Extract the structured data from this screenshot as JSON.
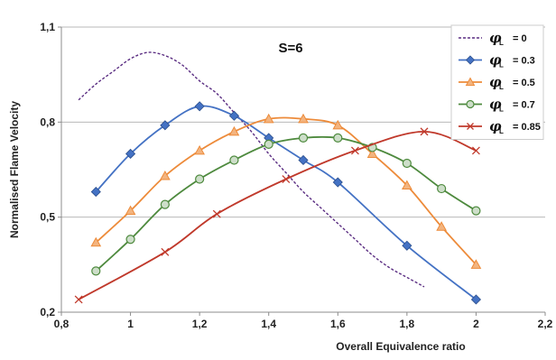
{
  "chart_data": {
    "type": "line",
    "xlabel": "Overall Equivalence ratio",
    "ylabel": "Normalised Flame Velocity",
    "xlim": [
      0.8,
      2.2
    ],
    "ylim": [
      0.2,
      1.1
    ],
    "x_ticks": [
      0.8,
      1.0,
      1.2,
      1.4,
      1.6,
      1.8,
      2.0,
      2.2
    ],
    "x_tick_labels": [
      "0,8",
      "1",
      "1,2",
      "1,4",
      "1,6",
      "1,8",
      "2",
      "2,2"
    ],
    "y_ticks": [
      0.2,
      0.5,
      0.8,
      1.1
    ],
    "y_tick_labels": [
      "0,2",
      "0,5",
      "0,8",
      "1,1"
    ],
    "grid": "horizontal",
    "legend_position": "top-right",
    "annotation": "S=6",
    "series": [
      {
        "name_symbol": "φ",
        "name_subscript": "L",
        "name_value": "= 0",
        "color": "#5a2d82",
        "dashed": true,
        "marker": "none",
        "x": [
          0.85,
          0.9,
          0.95,
          1.0,
          1.05,
          1.1,
          1.15,
          1.2,
          1.25,
          1.3,
          1.35,
          1.4,
          1.45,
          1.5,
          1.55,
          1.6,
          1.65,
          1.7,
          1.75,
          1.8,
          1.85
        ],
        "y": [
          0.87,
          0.92,
          0.96,
          1.0,
          1.02,
          1.01,
          0.98,
          0.93,
          0.89,
          0.83,
          0.77,
          0.7,
          0.64,
          0.58,
          0.53,
          0.48,
          0.43,
          0.38,
          0.34,
          0.31,
          0.28
        ]
      },
      {
        "name_symbol": "φ",
        "name_subscript": "L",
        "name_value": "= 0.3",
        "color": "#4472c4",
        "dashed": false,
        "marker": "diamond",
        "x": [
          0.9,
          1.0,
          1.1,
          1.2,
          1.3,
          1.4,
          1.5,
          1.6,
          1.8,
          2.0
        ],
        "y": [
          0.58,
          0.7,
          0.79,
          0.85,
          0.82,
          0.75,
          0.68,
          0.61,
          0.41,
          0.24
        ]
      },
      {
        "name_symbol": "φ",
        "name_subscript": "L",
        "name_value": "= 0.5",
        "color": "#ed8b3a",
        "dashed": false,
        "marker": "triangle",
        "x": [
          0.9,
          1.0,
          1.1,
          1.2,
          1.3,
          1.4,
          1.5,
          1.6,
          1.7,
          1.8,
          1.9,
          2.0
        ],
        "y": [
          0.42,
          0.52,
          0.63,
          0.71,
          0.77,
          0.81,
          0.81,
          0.79,
          0.7,
          0.6,
          0.47,
          0.35
        ]
      },
      {
        "name_symbol": "φ",
        "name_subscript": "L",
        "name_value": "= 0.7",
        "color": "#4e8a3e",
        "dashed": false,
        "marker": "circle",
        "x": [
          0.9,
          1.0,
          1.1,
          1.2,
          1.3,
          1.4,
          1.5,
          1.6,
          1.7,
          1.8,
          1.9,
          2.0
        ],
        "y": [
          0.33,
          0.43,
          0.54,
          0.62,
          0.68,
          0.73,
          0.75,
          0.75,
          0.72,
          0.67,
          0.59,
          0.52
        ]
      },
      {
        "name_symbol": "φ",
        "name_subscript": "L",
        "name_value": "= 0.85",
        "color": "#c0392b",
        "dashed": false,
        "marker": "x",
        "x": [
          0.85,
          1.1,
          1.25,
          1.45,
          1.65,
          1.85,
          2.0
        ],
        "y": [
          0.24,
          0.39,
          0.51,
          0.62,
          0.71,
          0.77,
          0.71
        ]
      }
    ]
  }
}
